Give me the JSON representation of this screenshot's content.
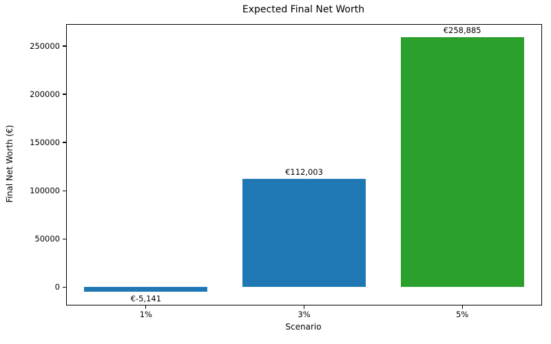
{
  "chart_data": {
    "type": "bar",
    "title": "Expected Final Net Worth",
    "xlabel": "Scenario",
    "ylabel": "Final Net Worth (€)",
    "categories": [
      "1%",
      "3%",
      "5%"
    ],
    "values": [
      -5141,
      112003,
      258885
    ],
    "value_labels": [
      "€-5,141",
      "€112,003",
      "€258,885"
    ],
    "bar_colors": [
      "#1f77b4",
      "#1f77b4",
      "#2ca02c"
    ],
    "ylim": [
      -18342,
      272086
    ],
    "yticks": [
      0,
      50000,
      100000,
      150000,
      200000,
      250000
    ],
    "ytick_labels": [
      "0",
      "50000",
      "100000",
      "150000",
      "200000",
      "250000"
    ],
    "grid": false,
    "legend": null,
    "bar_width_fraction": 0.78,
    "spine_color": "#000000",
    "background_color": "#ffffff"
  }
}
